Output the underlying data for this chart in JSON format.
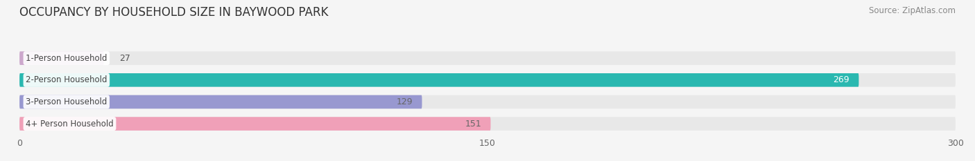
{
  "title": "OCCUPANCY BY HOUSEHOLD SIZE IN BAYWOOD PARK",
  "source": "Source: ZipAtlas.com",
  "categories": [
    "1-Person Household",
    "2-Person Household",
    "3-Person Household",
    "4+ Person Household"
  ],
  "values": [
    27,
    269,
    129,
    151
  ],
  "bar_colors": [
    "#cca8cc",
    "#2ab8b0",
    "#9898d0",
    "#f0a0b8"
  ],
  "bar_bg_color": "#e8e8e8",
  "xlim": [
    0,
    300
  ],
  "xticks": [
    0,
    150,
    300
  ],
  "label_colors": [
    "#666666",
    "#ffffff",
    "#666666",
    "#666666"
  ],
  "title_fontsize": 12,
  "source_fontsize": 8.5,
  "tick_fontsize": 9,
  "bar_label_fontsize": 9,
  "cat_label_fontsize": 8.5,
  "bar_height": 0.62,
  "fig_width": 14.06,
  "fig_height": 2.33,
  "background_color": "#f5f5f5"
}
